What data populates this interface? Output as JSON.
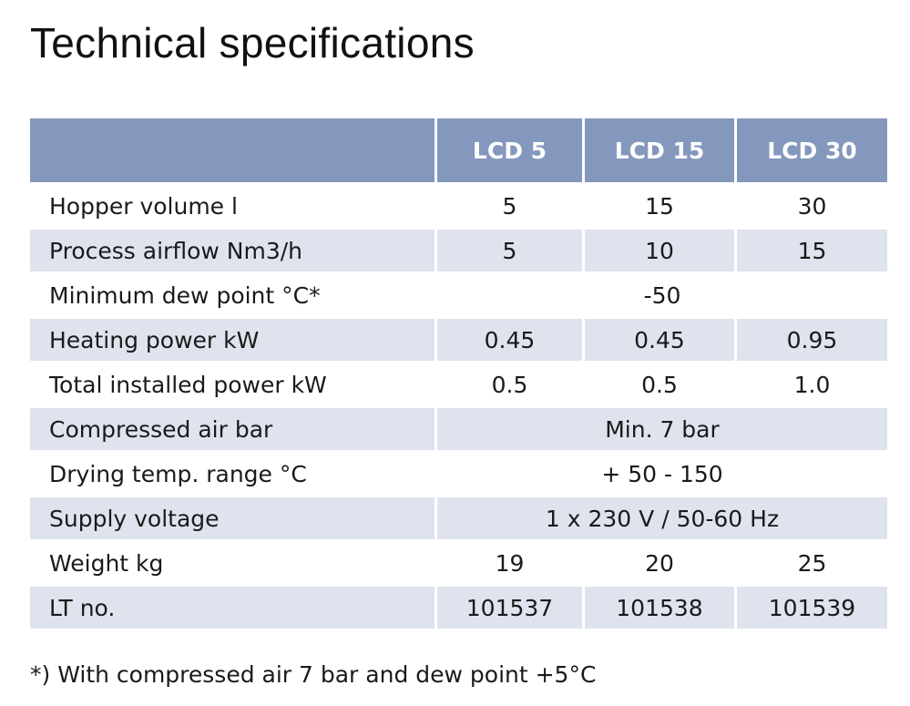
{
  "title": "Technical specifications",
  "columns": [
    "LCD 5",
    "LCD 15",
    "LCD 30"
  ],
  "rows": [
    {
      "label": "Hopper volume l",
      "values": [
        "5",
        "15",
        "30"
      ]
    },
    {
      "label": "Process airflow Nm3/h",
      "values": [
        "5",
        "10",
        "15"
      ]
    },
    {
      "label": "Minimum dew point °C*",
      "span": "-50"
    },
    {
      "label": "Heating power kW",
      "values": [
        "0.45",
        "0.45",
        "0.95"
      ]
    },
    {
      "label": "Total installed power kW",
      "values": [
        "0.5",
        "0.5",
        "1.0"
      ]
    },
    {
      "label": "Compressed air bar",
      "span": "Min. 7 bar"
    },
    {
      "label": "Drying temp. range °C",
      "span": "+ 50 - 150"
    },
    {
      "label": "Supply voltage",
      "span": "1 x 230 V / 50-60 Hz"
    },
    {
      "label": "Weight kg",
      "values": [
        "19",
        "20",
        "25"
      ]
    },
    {
      "label": "LT no.",
      "values": [
        "101537",
        "101538",
        "101539"
      ]
    }
  ],
  "footnote": "*) With compressed air 7 bar and dew point +5°C",
  "colors": {
    "header": "#8497bd",
    "shade": "#dfe3ee"
  }
}
